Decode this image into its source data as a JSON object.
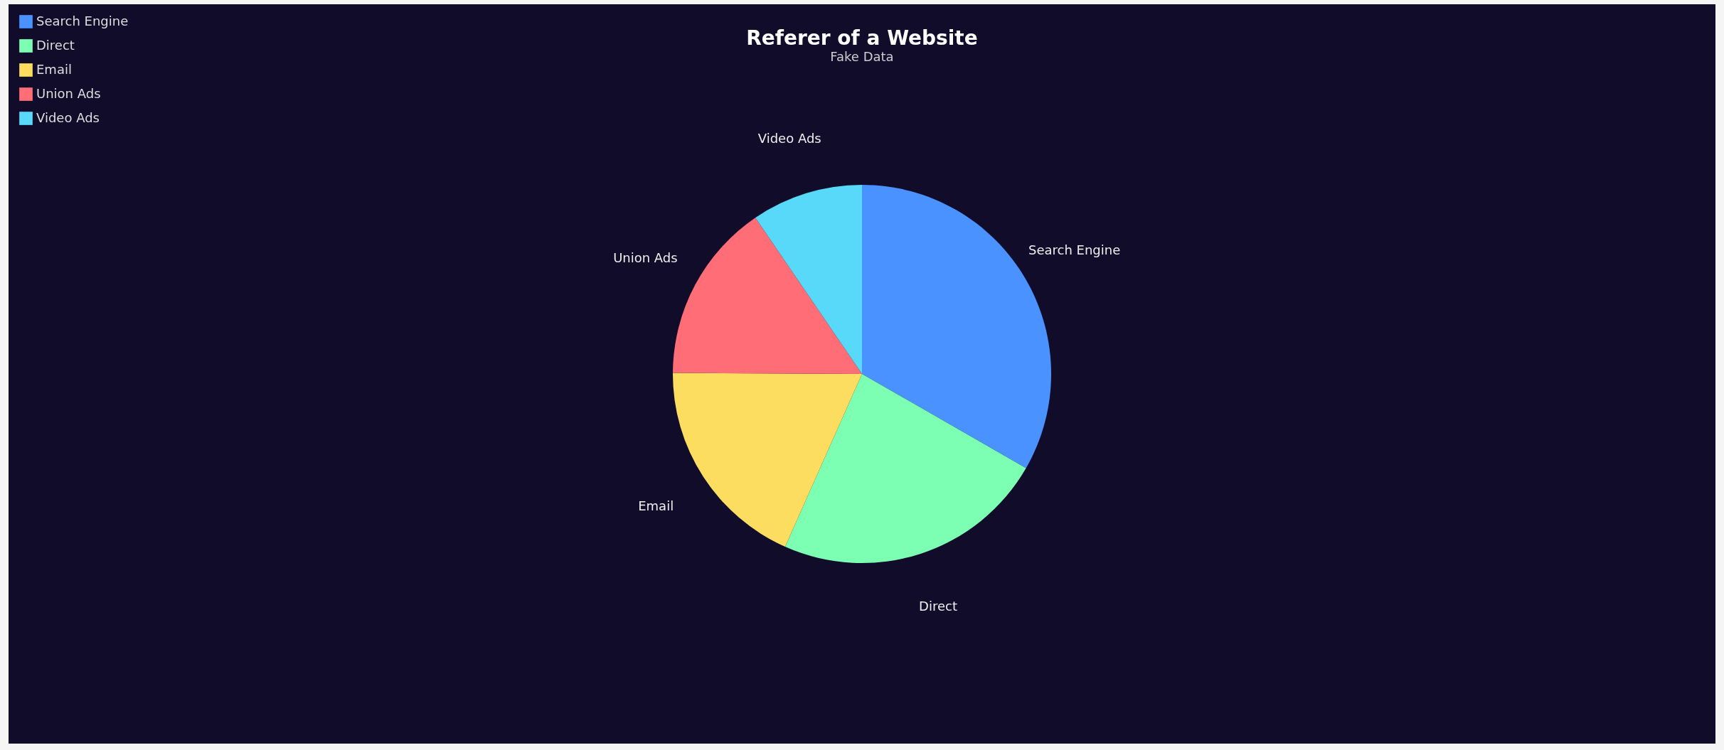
{
  "chart_data": {
    "type": "pie",
    "title": "Referer of a Website",
    "subtitle": "Fake Data",
    "categories": [
      "Search Engine",
      "Direct",
      "Email",
      "Union Ads",
      "Video Ads"
    ],
    "values": [
      33.3,
      23.36,
      18.43,
      15.38,
      9.53
    ],
    "colors": [
      "#4992ff",
      "#7cffb2",
      "#fddd60",
      "#ff6e76",
      "#58d9f9"
    ],
    "legend": "top left"
  }
}
